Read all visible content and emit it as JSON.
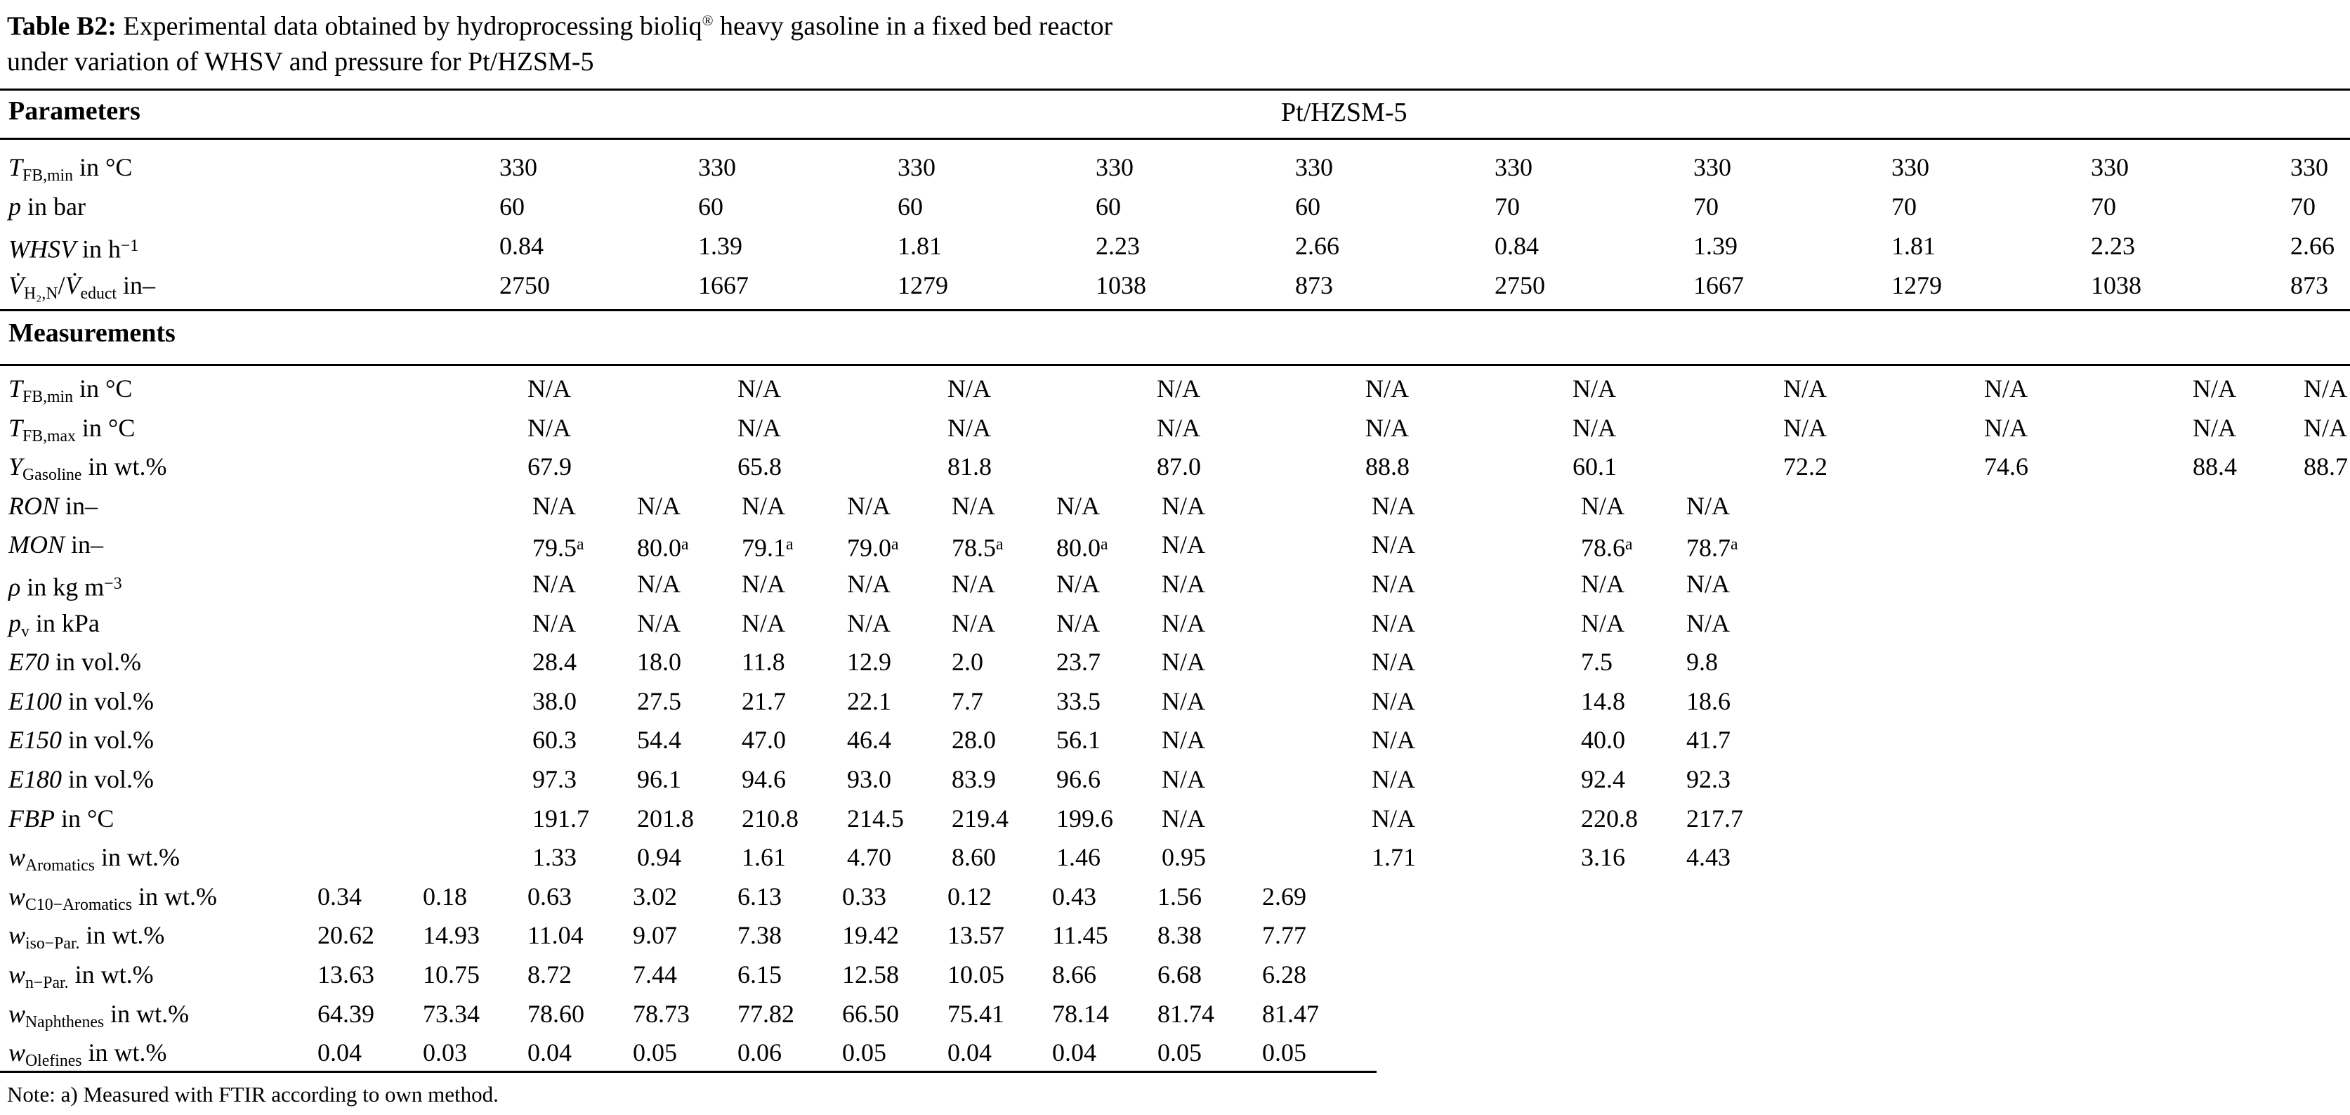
{
  "caption": {
    "label": "Table B2:",
    "text1": " Experimental data obtained by hydroprocessing bioliq",
    "registered": "®",
    "text2": " heavy gasoline in a fixed bed reactor",
    "line2": "under variation of WHSV and pressure for Pt/HZSM-5"
  },
  "header": {
    "parameters": "Parameters",
    "catalyst": "Pt/HZSM-5",
    "measurements": "Measurements"
  },
  "note": "Note: a) Measured with FTIR according to own method.",
  "table": {
    "parameter_rows": [
      {
        "colset": "A",
        "label": [
          {
            "t": "T",
            "s": "i"
          },
          {
            "t": "FB,min",
            "s": "sub"
          },
          {
            "t": " in °C",
            "s": "n"
          }
        ],
        "values": [
          "330",
          "330",
          "330",
          "330",
          "330",
          "330",
          "330",
          "330",
          "330",
          "330"
        ]
      },
      {
        "colset": "A",
        "label": [
          {
            "t": "p",
            "s": "i"
          },
          {
            "t": " in bar",
            "s": "n"
          }
        ],
        "values": [
          "60",
          "60",
          "60",
          "60",
          "60",
          "70",
          "70",
          "70",
          "70",
          "70"
        ]
      },
      {
        "colset": "A",
        "label": [
          {
            "t": "WHSV",
            "s": "i"
          },
          {
            "t": " in h",
            "s": "n"
          },
          {
            "t": "−1",
            "s": "sup"
          }
        ],
        "values": [
          "0.84",
          "1.39",
          "1.81",
          "2.23",
          "2.66",
          "0.84",
          "1.39",
          "1.81",
          "2.23",
          "2.66"
        ]
      },
      {
        "colset": "A",
        "label": [
          {
            "t": "V̇",
            "s": "i"
          },
          {
            "t": "H₂,N",
            "s": "sub"
          },
          {
            "t": "/",
            "s": "n"
          },
          {
            "t": "V̇",
            "s": "i"
          },
          {
            "t": "educt",
            "s": "sub"
          },
          {
            "t": " in–",
            "s": "n"
          }
        ],
        "values": [
          "2750",
          "1667",
          "1279",
          "1038",
          "873",
          "2750",
          "1667",
          "1279",
          "1038",
          "873"
        ]
      }
    ],
    "measurement_rows": [
      {
        "colset": "B",
        "label": [
          {
            "t": "T",
            "s": "i"
          },
          {
            "t": "FB,min",
            "s": "sub"
          },
          {
            "t": " in °C",
            "s": "n"
          }
        ],
        "values": [
          "N/A",
          "N/A",
          "N/A",
          "N/A",
          "N/A",
          "N/A",
          "N/A",
          "N/A",
          "N/A",
          "N/A"
        ]
      },
      {
        "colset": "B",
        "label": [
          {
            "t": "T",
            "s": "i"
          },
          {
            "t": "FB,max",
            "s": "sub"
          },
          {
            "t": " in °C",
            "s": "n"
          }
        ],
        "values": [
          "N/A",
          "N/A",
          "N/A",
          "N/A",
          "N/A",
          "N/A",
          "N/A",
          "N/A",
          "N/A",
          "N/A"
        ]
      },
      {
        "colset": "B",
        "label": [
          {
            "t": "Y",
            "s": "i"
          },
          {
            "t": "Gasoline",
            "s": "sub"
          },
          {
            "t": " in wt.%",
            "s": "n"
          }
        ],
        "values": [
          "67.9",
          "65.8",
          "81.8",
          "87.0",
          "88.8",
          "60.1",
          "72.2",
          "74.6",
          "88.4",
          "88.7"
        ]
      },
      {
        "colset": "C",
        "label": [
          {
            "t": "RON",
            "s": "i"
          },
          {
            "t": " in–",
            "s": "n"
          }
        ],
        "values": [
          "N/A",
          "N/A",
          "N/A",
          "N/A",
          "N/A",
          "N/A",
          "N/A",
          "N/A",
          "N/A",
          "N/A"
        ]
      },
      {
        "colset": "C",
        "label": [
          {
            "t": "MON",
            "s": "i"
          },
          {
            "t": " in–",
            "s": "n"
          }
        ],
        "values": [
          "79.5ᵃ",
          "80.0ᵃ",
          "79.1ᵃ",
          "79.0ᵃ",
          "78.5ᵃ",
          "80.0ᵃ",
          "N/A",
          "N/A",
          "78.6ᵃ",
          "78.7ᵃ"
        ]
      },
      {
        "colset": "C",
        "label": [
          {
            "t": "ρ",
            "s": "i"
          },
          {
            "t": " in kg m",
            "s": "n"
          },
          {
            "t": "−3",
            "s": "sup"
          }
        ],
        "values": [
          "N/A",
          "N/A",
          "N/A",
          "N/A",
          "N/A",
          "N/A",
          "N/A",
          "N/A",
          "N/A",
          "N/A"
        ]
      },
      {
        "colset": "C",
        "label": [
          {
            "t": "p",
            "s": "i"
          },
          {
            "t": "v",
            "s": "sub"
          },
          {
            "t": " in kPa",
            "s": "n"
          }
        ],
        "values": [
          "N/A",
          "N/A",
          "N/A",
          "N/A",
          "N/A",
          "N/A",
          "N/A",
          "N/A",
          "N/A",
          "N/A"
        ]
      },
      {
        "colset": "C",
        "label": [
          {
            "t": "E70",
            "s": "i"
          },
          {
            "t": " in vol.%",
            "s": "n"
          }
        ],
        "values": [
          "28.4",
          "18.0",
          "11.8",
          "12.9",
          "2.0",
          "23.7",
          "N/A",
          "N/A",
          "7.5",
          "9.8"
        ]
      },
      {
        "colset": "C",
        "label": [
          {
            "t": "E100",
            "s": "i"
          },
          {
            "t": " in vol.%",
            "s": "n"
          }
        ],
        "values": [
          "38.0",
          "27.5",
          "21.7",
          "22.1",
          "7.7",
          "33.5",
          "N/A",
          "N/A",
          "14.8",
          "18.6"
        ]
      },
      {
        "colset": "C",
        "label": [
          {
            "t": "E150",
            "s": "i"
          },
          {
            "t": " in vol.%",
            "s": "n"
          }
        ],
        "values": [
          "60.3",
          "54.4",
          "47.0",
          "46.4",
          "28.0",
          "56.1",
          "N/A",
          "N/A",
          "40.0",
          "41.7"
        ]
      },
      {
        "colset": "C",
        "label": [
          {
            "t": "E180",
            "s": "i"
          },
          {
            "t": " in vol.%",
            "s": "n"
          }
        ],
        "values": [
          "97.3",
          "96.1",
          "94.6",
          "93.0",
          "83.9",
          "96.6",
          "N/A",
          "N/A",
          "92.4",
          "92.3"
        ]
      },
      {
        "colset": "C",
        "label": [
          {
            "t": "FBP",
            "s": "i"
          },
          {
            "t": " in °C",
            "s": "n"
          }
        ],
        "values": [
          "191.7",
          "201.8",
          "210.8",
          "214.5",
          "219.4",
          "199.6",
          "N/A",
          "N/A",
          "220.8",
          "217.7"
        ]
      },
      {
        "colset": "C",
        "label": [
          {
            "t": "w",
            "s": "i"
          },
          {
            "t": "Aromatics",
            "s": "sub"
          },
          {
            "t": " in wt.%",
            "s": "n"
          }
        ],
        "values": [
          "1.33",
          "0.94",
          "1.61",
          "4.70",
          "8.60",
          "1.46",
          "0.95",
          "1.71",
          "3.16",
          "4.43"
        ]
      },
      {
        "colset": "D",
        "label": [
          {
            "t": "w",
            "s": "i"
          },
          {
            "t": "C10−Aromatics",
            "s": "sub"
          },
          {
            "t": " in wt.%",
            "s": "n"
          }
        ],
        "values": [
          "0.34",
          "0.18",
          "0.63",
          "3.02",
          "6.13",
          "0.33",
          "0.12",
          "0.43",
          "1.56",
          "2.69"
        ]
      },
      {
        "colset": "D",
        "label": [
          {
            "t": "w",
            "s": "i"
          },
          {
            "t": "iso−Par.",
            "s": "sub"
          },
          {
            "t": " in wt.%",
            "s": "n"
          }
        ],
        "values": [
          "20.62",
          "14.93",
          "11.04",
          "9.07",
          "7.38",
          "19.42",
          "13.57",
          "11.45",
          "8.38",
          "7.77"
        ]
      },
      {
        "colset": "D",
        "label": [
          {
            "t": "w",
            "s": "i"
          },
          {
            "t": "n−Par.",
            "s": "sub"
          },
          {
            "t": " in wt.%",
            "s": "n"
          }
        ],
        "values": [
          "13.63",
          "10.75",
          "8.72",
          "7.44",
          "6.15",
          "12.58",
          "10.05",
          "8.66",
          "6.68",
          "6.28"
        ]
      },
      {
        "colset": "D",
        "label": [
          {
            "t": "w",
            "s": "i"
          },
          {
            "t": "Naphthenes",
            "s": "sub"
          },
          {
            "t": " in wt.%",
            "s": "n"
          }
        ],
        "values": [
          "64.39",
          "73.34",
          "78.60",
          "78.73",
          "77.82",
          "66.50",
          "75.41",
          "78.14",
          "81.74",
          "81.47"
        ]
      },
      {
        "colset": "D",
        "label": [
          {
            "t": "w",
            "s": "i"
          },
          {
            "t": "Olefines",
            "s": "sub"
          },
          {
            "t": " in wt.%",
            "s": "n"
          }
        ],
        "values": [
          "0.04",
          "0.03",
          "0.04",
          "0.05",
          "0.06",
          "0.05",
          "0.04",
          "0.04",
          "0.05",
          "0.05"
        ]
      }
    ]
  }
}
